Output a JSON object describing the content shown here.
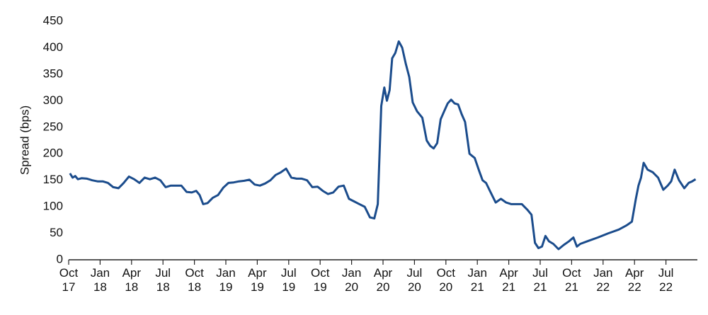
{
  "chart_data": {
    "type": "line",
    "y_label": "Spread (bps)",
    "xlim": [
      "2017-10",
      "2022-10"
    ],
    "xticks": [
      {
        "value": "2017-10",
        "label": "Oct 17"
      },
      {
        "value": "2018-01",
        "label": "Jan 18"
      },
      {
        "value": "2018-04",
        "label": "Apr 18"
      },
      {
        "value": "2018-07",
        "label": "Jul 18"
      },
      {
        "value": "2018-10",
        "label": "Oct 18"
      },
      {
        "value": "2019-01",
        "label": "Jan 19"
      },
      {
        "value": "2019-04",
        "label": "Apr 19"
      },
      {
        "value": "2019-07",
        "label": "Jul 19"
      },
      {
        "value": "2019-10",
        "label": "Oct 19"
      },
      {
        "value": "2020-01",
        "label": "Jan 20"
      },
      {
        "value": "2020-04",
        "label": "Apr 20"
      },
      {
        "value": "2020-07",
        "label": "Jul 20"
      },
      {
        "value": "2020-10",
        "label": "Oct 20"
      },
      {
        "value": "2021-01",
        "label": "Jan 21"
      },
      {
        "value": "2021-04",
        "label": "Apr 21"
      },
      {
        "value": "2021-07",
        "label": "Jul 21"
      },
      {
        "value": "2021-10",
        "label": "Oct 21"
      },
      {
        "value": "2022-01",
        "label": "Jan 22"
      },
      {
        "value": "2022-04",
        "label": "Apr 22"
      },
      {
        "value": "2022-07",
        "label": "Jul 22"
      }
    ],
    "ylim": [
      0,
      450
    ],
    "yticks": [
      0,
      50,
      100,
      150,
      200,
      250,
      300,
      350,
      400,
      450
    ],
    "grid": false,
    "series": [
      {
        "color": "#1b4c8c",
        "x": [
          "2017-10",
          "2017-10",
          "2017-10",
          "2017-10",
          "2017-11",
          "2017-11",
          "2017-12",
          "2017-12",
          "2018-01",
          "2018-01",
          "2018-02",
          "2018-02",
          "2018-03",
          "2018-03",
          "2018-04",
          "2018-04",
          "2018-05",
          "2018-05",
          "2018-06",
          "2018-06",
          "2018-07",
          "2018-07",
          "2018-08",
          "2018-08",
          "2018-09",
          "2018-09",
          "2018-10",
          "2018-10",
          "2018-10",
          "2018-11",
          "2018-11",
          "2018-12",
          "2018-12",
          "2019-01",
          "2019-01",
          "2019-02",
          "2019-02",
          "2019-03",
          "2019-03",
          "2019-04",
          "2019-04",
          "2019-05",
          "2019-05",
          "2019-06",
          "2019-06",
          "2019-07",
          "2019-07",
          "2019-08",
          "2019-08",
          "2019-09",
          "2019-09",
          "2019-10",
          "2019-10",
          "2019-11",
          "2019-11",
          "2019-12",
          "2019-12",
          "2020-01",
          "2020-01",
          "2020-02",
          "2020-02",
          "2020-03",
          "2020-03",
          "2020-03",
          "2020-04",
          "2020-04",
          "2020-04",
          "2020-04",
          "2020-05",
          "2020-05",
          "2020-05",
          "2020-06",
          "2020-06",
          "2020-06",
          "2020-07",
          "2020-07",
          "2020-08",
          "2020-08",
          "2020-08",
          "2020-09",
          "2020-09",
          "2020-09",
          "2020-10",
          "2020-10",
          "2020-10",
          "2020-11",
          "2020-11",
          "2020-11",
          "2020-12",
          "2020-12",
          "2021-01",
          "2021-01",
          "2021-01",
          "2021-02",
          "2021-02",
          "2021-03",
          "2021-03",
          "2021-04",
          "2021-04",
          "2021-05",
          "2021-05",
          "2021-06",
          "2021-06",
          "2021-06",
          "2021-07",
          "2021-07",
          "2021-07",
          "2021-08",
          "2021-08",
          "2021-09",
          "2021-09",
          "2021-10",
          "2021-10",
          "2021-10",
          "2021-11",
          "2021-12",
          "2022-01",
          "2022-02",
          "2022-03",
          "2022-03",
          "2022-04",
          "2022-04",
          "2022-04",
          "2022-04",
          "2022-05",
          "2022-05",
          "2022-06",
          "2022-06",
          "2022-07",
          "2022-07",
          "2022-07",
          "2022-08",
          "2022-08",
          "2022-09",
          "2022-09",
          "2022-09"
        ],
        "values": [
          163,
          155,
          158,
          152,
          154,
          153,
          150,
          148,
          148,
          145,
          137,
          135,
          145,
          157,
          152,
          145,
          155,
          152,
          155,
          150,
          137,
          140,
          140,
          140,
          128,
          127,
          130,
          122,
          105,
          107,
          117,
          122,
          136,
          145,
          146,
          148,
          149,
          151,
          142,
          140,
          144,
          150,
          160,
          165,
          172,
          155,
          153,
          153,
          150,
          137,
          138,
          130,
          124,
          127,
          138,
          140,
          115,
          110,
          105,
          100,
          80,
          78,
          105,
          290,
          325,
          300,
          320,
          380,
          390,
          412,
          400,
          370,
          345,
          297,
          280,
          268,
          225,
          215,
          210,
          220,
          265,
          280,
          295,
          302,
          295,
          293,
          275,
          260,
          200,
          192,
          168,
          150,
          145,
          128,
          108,
          115,
          108,
          105,
          105,
          105,
          95,
          85,
          32,
          22,
          25,
          45,
          35,
          30,
          20,
          28,
          35,
          42,
          25,
          30,
          35,
          42,
          50,
          57,
          65,
          72,
          115,
          140,
          155,
          183,
          170,
          165,
          155,
          132,
          140,
          148,
          170,
          150,
          135,
          145,
          148,
          152
        ]
      }
    ]
  }
}
